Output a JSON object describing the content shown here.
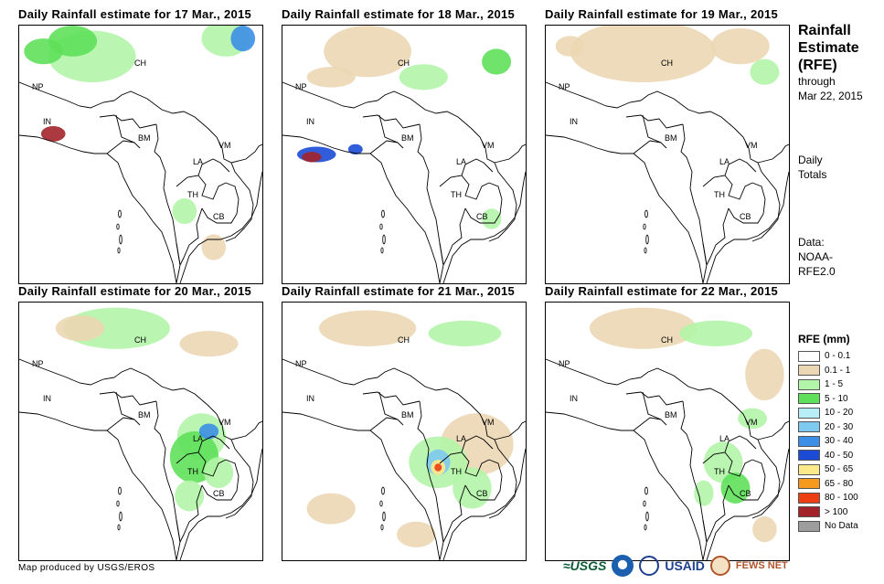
{
  "panels": [
    {
      "title": "Daily Rainfall estimate for 17 Mar., 2015"
    },
    {
      "title": "Daily Rainfall estimate for 18 Mar., 2015"
    },
    {
      "title": "Daily Rainfall estimate for 19 Mar., 2015"
    },
    {
      "title": "Daily Rainfall estimate for 20 Mar., 2015"
    },
    {
      "title": "Daily Rainfall estimate for 21 Mar., 2015"
    },
    {
      "title": "Daily Rainfall estimate for 22 Mar., 2015"
    }
  ],
  "map_labels": {
    "ch": "CH",
    "np": "NP",
    "in": "IN",
    "bm": "BM",
    "la": "LA",
    "vm": "VM",
    "th": "TH",
    "cb": "CB"
  },
  "sidebar": {
    "title_line1": "Rainfall",
    "title_line2": "Estimate",
    "title_line3": "(RFE)",
    "through": "through",
    "date": "Mar 22, 2015",
    "daily": "Daily",
    "totals": "Totals",
    "data_label": "Data:",
    "data_src1": "NOAA-",
    "data_src2": "RFE2.0"
  },
  "legend": {
    "title": "RFE (mm)",
    "items": [
      {
        "label": "0 - 0.1",
        "color": "#ffffff"
      },
      {
        "label": "0.1 - 1",
        "color": "#ecd7b4"
      },
      {
        "label": "1 - 5",
        "color": "#b2f5a8"
      },
      {
        "label": "5 - 10",
        "color": "#5fe05a"
      },
      {
        "label": "10 - 20",
        "color": "#b8eef6"
      },
      {
        "label": "20 - 30",
        "color": "#7ec9ef"
      },
      {
        "label": "30 - 40",
        "color": "#3c8fe6"
      },
      {
        "label": "40 - 50",
        "color": "#1c4bd6"
      },
      {
        "label": "50 - 65",
        "color": "#fce98a"
      },
      {
        "label": "65 - 80",
        "color": "#f59a1c"
      },
      {
        "label": "80 - 100",
        "color": "#ee3f14"
      },
      {
        "label": "> 100",
        "color": "#a3232a"
      },
      {
        "label": "No Data",
        "color": "#9d9d9d"
      }
    ]
  },
  "footer": {
    "credit": "Map produced by USGS/EROS",
    "usgs": "≈USGS",
    "usaid": "USAID",
    "fews": "FEWS NET"
  }
}
